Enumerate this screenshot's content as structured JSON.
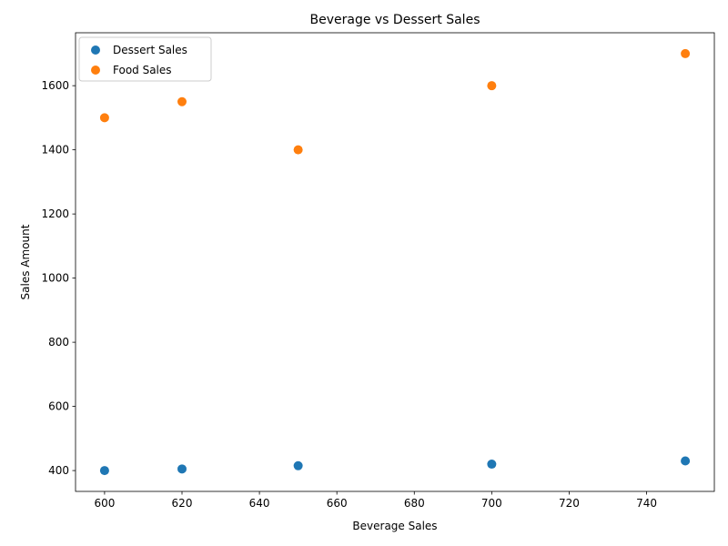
{
  "chart_data": {
    "type": "scatter",
    "title": "Beverage vs Dessert Sales",
    "xlabel": "Beverage Sales",
    "ylabel": "Sales Amount",
    "xlim": [
      592.5,
      757.5
    ],
    "ylim": [
      335,
      1765
    ],
    "x_ticks": [
      600,
      620,
      640,
      660,
      680,
      700,
      720,
      740
    ],
    "y_ticks": [
      400,
      600,
      800,
      1000,
      1200,
      1400,
      1600
    ],
    "grid": false,
    "legend_position": "top-left",
    "series": [
      {
        "name": "Dessert Sales",
        "color": "#1f77b4",
        "points": [
          {
            "x": 600,
            "y": 400
          },
          {
            "x": 620,
            "y": 405
          },
          {
            "x": 650,
            "y": 415
          },
          {
            "x": 700,
            "y": 420
          },
          {
            "x": 750,
            "y": 430
          }
        ]
      },
      {
        "name": "Food Sales",
        "color": "#ff7f0e",
        "points": [
          {
            "x": 600,
            "y": 1500
          },
          {
            "x": 620,
            "y": 1550
          },
          {
            "x": 650,
            "y": 1400
          },
          {
            "x": 700,
            "y": 1600
          },
          {
            "x": 750,
            "y": 1700
          }
        ]
      }
    ]
  }
}
